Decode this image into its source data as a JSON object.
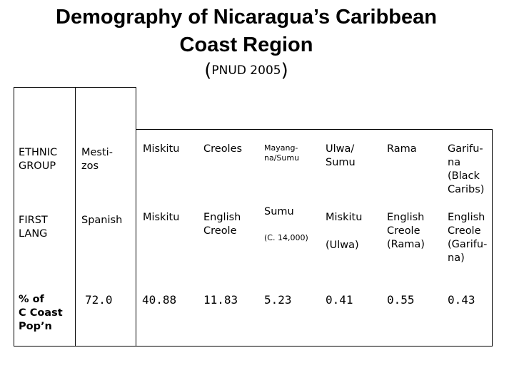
{
  "chart_data": {
    "type": "table",
    "title_line1": "Demography of Nicaragua’s Caribbean",
    "title_line2": "Coast Region",
    "subtitle_open": "(",
    "subtitle_text": "PNUD 2005",
    "subtitle_close": ")",
    "rows": [
      {
        "header": "ETHNIC\nGROUP",
        "cells": [
          "Mesti-\n    zos",
          "Miskitu",
          "Creoles",
          "Mayang-\nna/Sumu",
          "Ulwa/\nSumu",
          "Rama",
          "Garifu-\n   na\n(Black\nCaribs)"
        ]
      },
      {
        "header": "FIRST\nLANG",
        "cells": [
          "Spanish",
          "Miskitu",
          "English\nCreole",
          "Sumu",
          "Miskitu",
          "English\nCreole\n(Rama)",
          "English\nCreole\n(Garifu-\n   na)"
        ],
        "note": "(C. 14,000)",
        "miskitu_note": "(Ulwa)"
      },
      {
        "header": "% of\nC Coast\nPop’n",
        "cells": [
          "72.0",
          "40.88",
          "11.83",
          "5.23",
          "0.41",
          "0.55",
          "0.43"
        ]
      }
    ]
  }
}
